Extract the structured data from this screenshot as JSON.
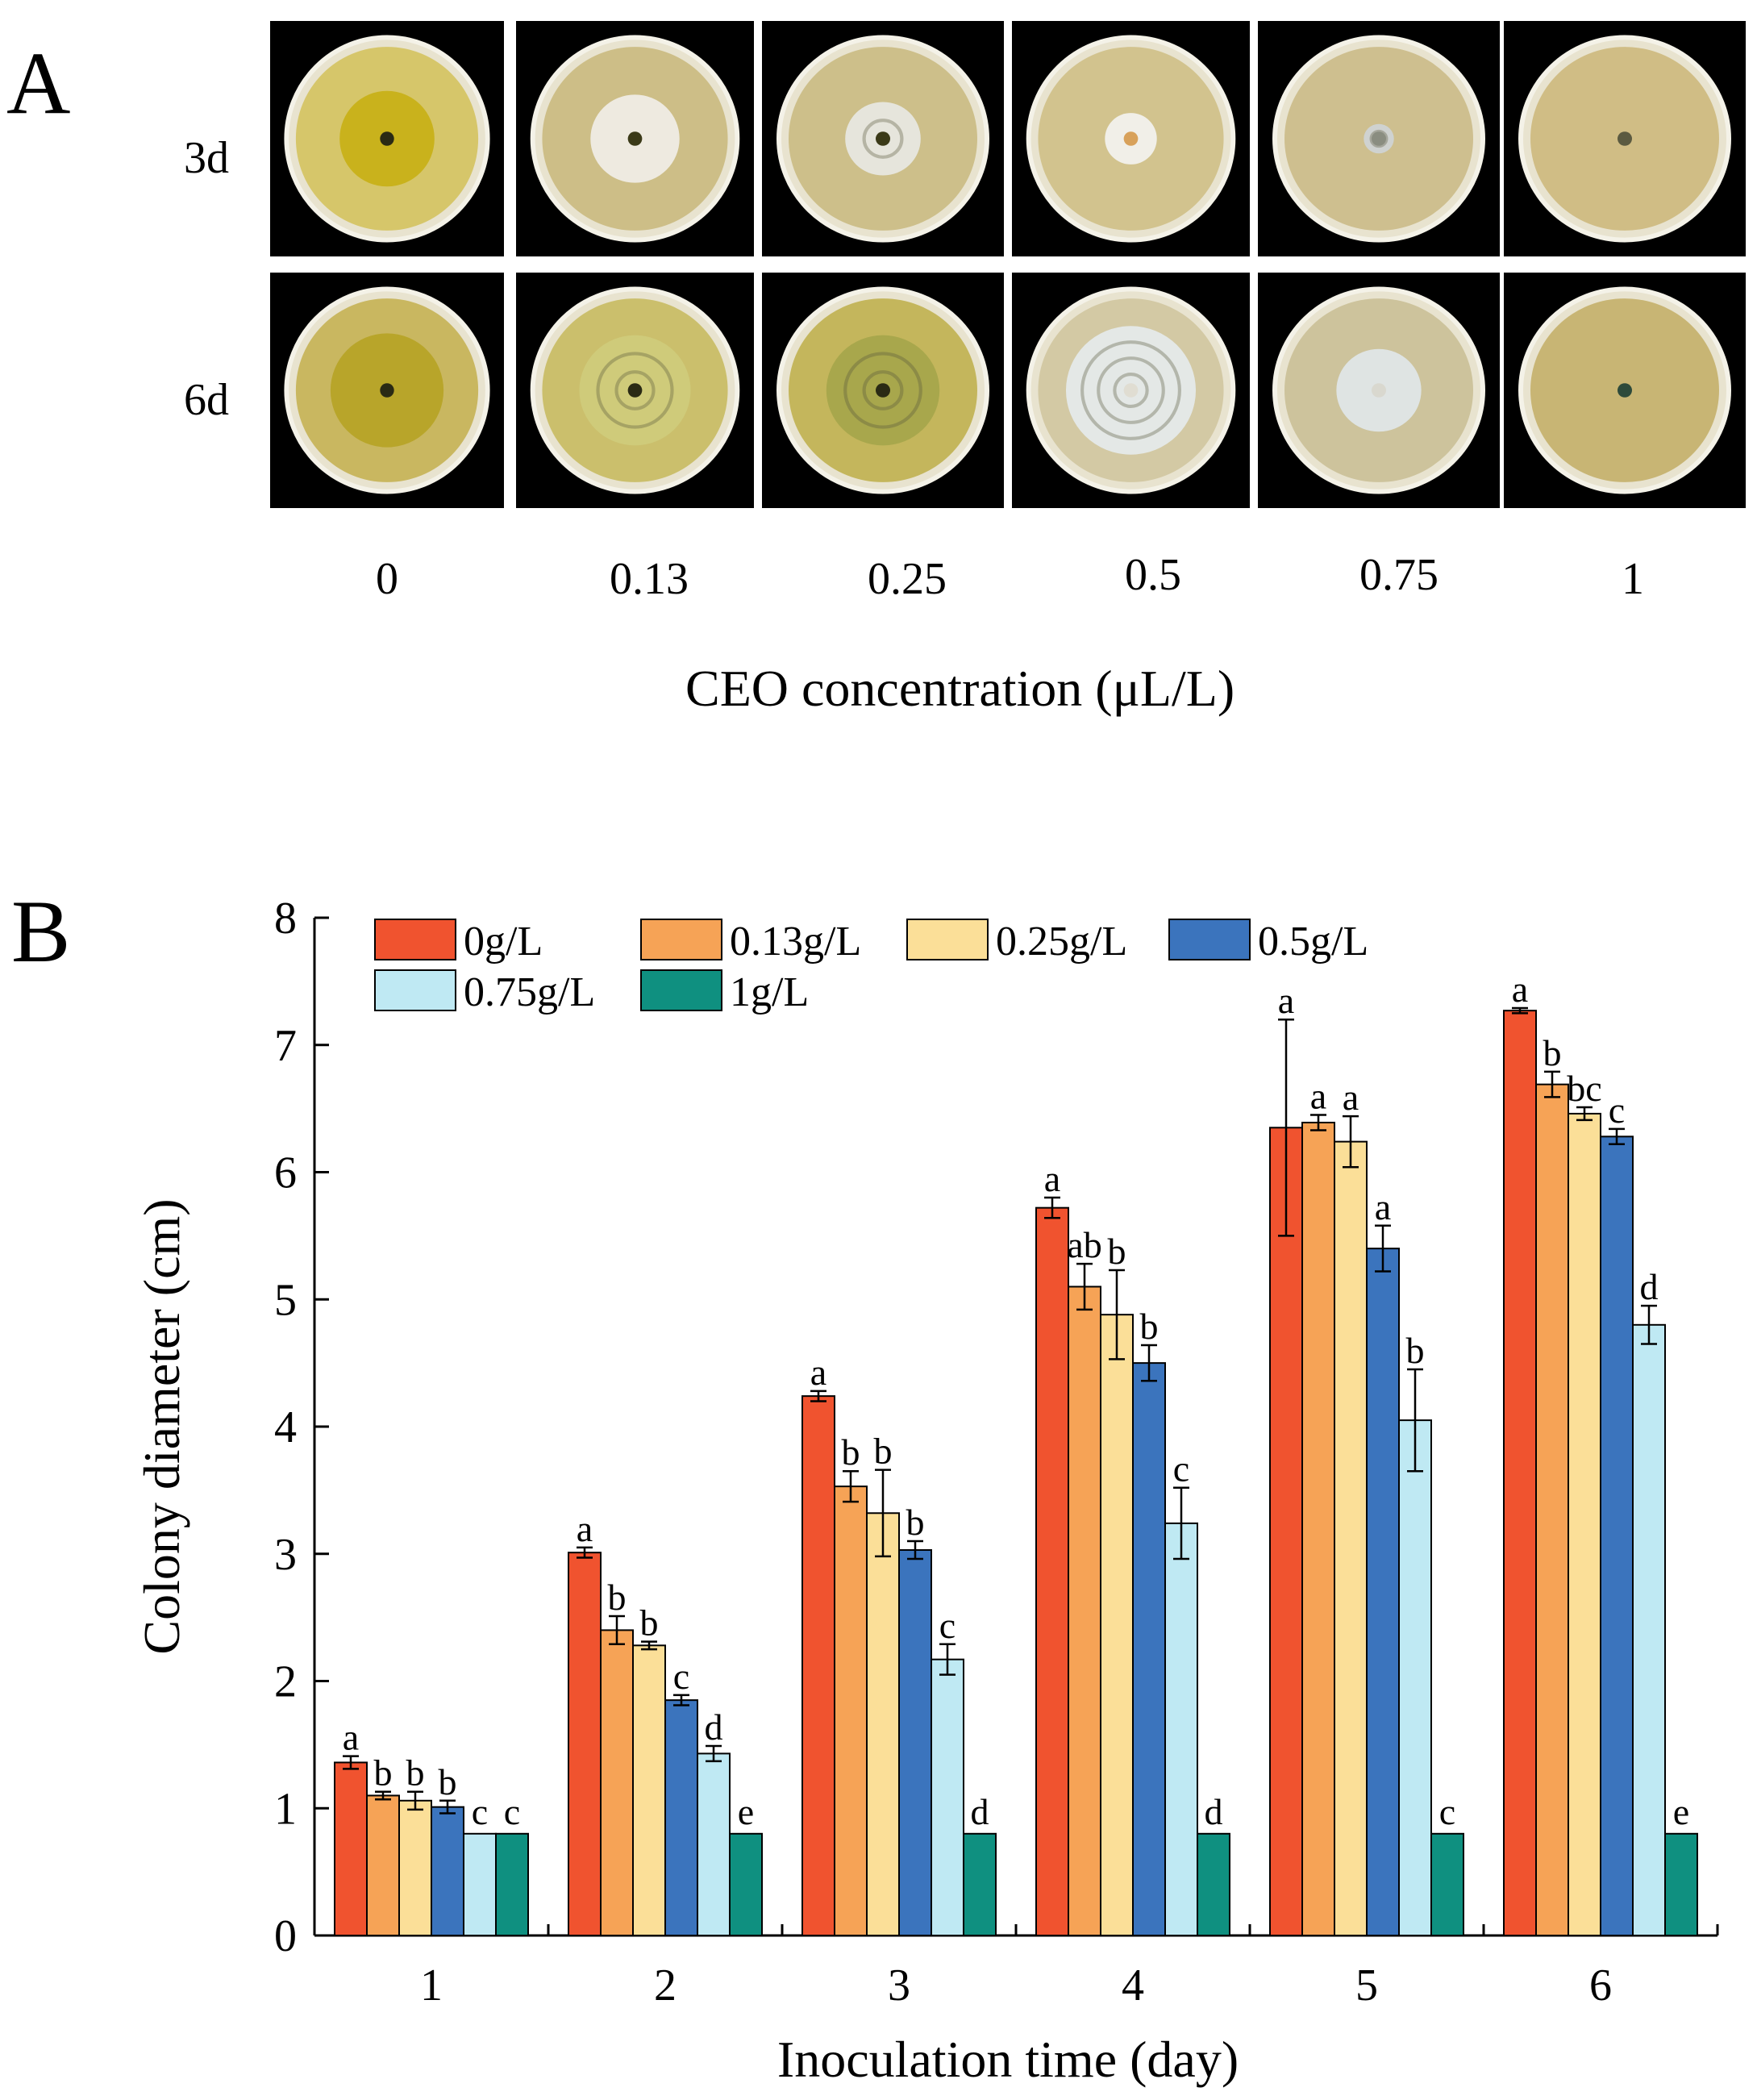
{
  "panel_a": {
    "letter": "A",
    "row_labels": [
      "3d",
      "6d"
    ],
    "x_title": "CEO concentration (μL/L)",
    "concentrations": [
      "0",
      "0.13",
      "0.25",
      "0.5",
      "0.75",
      "1"
    ],
    "dishes": [
      [
        {
          "outer": "#d6c66a",
          "colony": "#c9b21c",
          "colony_r": 0.52,
          "rings": 0,
          "core": "#2a2a14"
        },
        {
          "outer": "#cdbe87",
          "colony": "#eeeae0",
          "colony_r": 0.48,
          "rings": 0,
          "core": "#3b3a18"
        },
        {
          "outer": "#cdbf8a",
          "colony": "#e6e5dc",
          "colony_r": 0.4,
          "rings": 1,
          "core": "#3b3a18"
        },
        {
          "outer": "#d2c38e",
          "colony": "#f1efe8",
          "colony_r": 0.28,
          "rings": 0,
          "core": "#d8a15a"
        },
        {
          "outer": "#cebf8f",
          "colony": "#cfd2d0",
          "colony_r": 0.16,
          "rings": 1,
          "core": "#8a8d80"
        },
        {
          "outer": "#d0bd85",
          "colony": "#b0a877",
          "colony_r": 0.03,
          "rings": 0,
          "core": "#5b5a40"
        }
      ],
      [
        {
          "outer": "#c9b760",
          "colony": "#b8a52a",
          "colony_r": 0.62,
          "rings": 0,
          "core": "#2a2a14"
        },
        {
          "outer": "#cbbf6c",
          "colony": "#cfcb7a",
          "colony_r": 0.6,
          "rings": 2,
          "core": "#2a2a14"
        },
        {
          "outer": "#c4b65c",
          "colony": "#a8a74c",
          "colony_r": 0.6,
          "rings": 2,
          "core": "#2a2a14"
        },
        {
          "outer": "#d3c9a4",
          "colony": "#e4e8e6",
          "colony_r": 0.7,
          "rings": 3,
          "core": "#e0ddd2"
        },
        {
          "outer": "#cdc39c",
          "colony": "#dfe4e3",
          "colony_r": 0.45,
          "rings": 0,
          "core": "#d9d8cf"
        },
        {
          "outer": "#c8b574",
          "colony": "#9aa089",
          "colony_r": 0.05,
          "rings": 0,
          "core": "#2e4a3a"
        }
      ]
    ]
  },
  "panel_b": {
    "letter": "B",
    "colors": [
      "#f0532f",
      "#f6a356",
      "#fbdf98",
      "#3b74bd",
      "#bfe9f3",
      "#0f9080"
    ]
  },
  "chart_data": {
    "type": "bar",
    "title": "",
    "xlabel": "Inoculation time (day)",
    "ylabel": "Colony diameter (cm)",
    "ylim": [
      0,
      8
    ],
    "yticks": [
      "0",
      "1",
      "2",
      "3",
      "4",
      "5",
      "6",
      "7",
      "8"
    ],
    "categories": [
      "1",
      "2",
      "3",
      "4",
      "5",
      "6"
    ],
    "legend_position": "top-left",
    "series": [
      {
        "name": "0g/L",
        "values": [
          1.36,
          3.01,
          4.24,
          5.72,
          6.35,
          7.27
        ],
        "errors": [
          0.05,
          0.04,
          0.04,
          0.08,
          0.85,
          0.02
        ],
        "letters": [
          "a",
          "a",
          "a",
          "a",
          "a",
          "a"
        ]
      },
      {
        "name": "0.13g/L",
        "values": [
          1.1,
          2.4,
          3.53,
          5.1,
          6.39,
          6.69
        ],
        "errors": [
          0.03,
          0.11,
          0.12,
          0.18,
          0.06,
          0.1
        ],
        "letters": [
          "b",
          "b",
          "b",
          "ab",
          "a",
          "b"
        ]
      },
      {
        "name": "0.25g/L",
        "values": [
          1.06,
          2.28,
          3.32,
          4.88,
          6.24,
          6.46
        ],
        "errors": [
          0.07,
          0.03,
          0.34,
          0.35,
          0.2,
          0.05
        ],
        "letters": [
          "b",
          "b",
          "b",
          "b",
          "a",
          "bc"
        ]
      },
      {
        "name": "0.5g/L",
        "values": [
          1.01,
          1.85,
          3.03,
          4.5,
          5.4,
          6.28
        ],
        "errors": [
          0.05,
          0.04,
          0.07,
          0.14,
          0.18,
          0.06
        ],
        "letters": [
          "b",
          "c",
          "b",
          "b",
          "a",
          "c"
        ]
      },
      {
        "name": "0.75g/L",
        "values": [
          0.8,
          1.43,
          2.17,
          3.24,
          4.05,
          4.8
        ],
        "errors": [
          0.0,
          0.06,
          0.12,
          0.28,
          0.4,
          0.15
        ],
        "letters": [
          "c",
          "d",
          "c",
          "c",
          "b",
          "d"
        ]
      },
      {
        "name": "1g/L",
        "values": [
          0.8,
          0.8,
          0.8,
          0.8,
          0.8,
          0.8
        ],
        "errors": [
          0.0,
          0.0,
          0.0,
          0.0,
          0.0,
          0.0
        ],
        "letters": [
          "c",
          "e",
          "d",
          "d",
          "c",
          "e"
        ]
      }
    ]
  }
}
